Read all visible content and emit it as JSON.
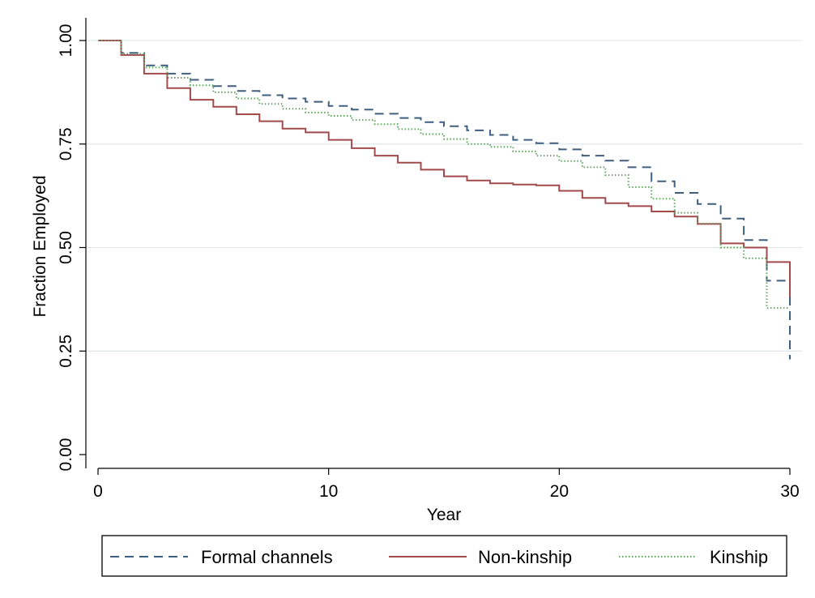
{
  "chart_data": {
    "type": "line",
    "title": "",
    "xlabel": "Year",
    "ylabel": "Fraction Employed",
    "xlim": [
      0,
      30
    ],
    "ylim": [
      0,
      1
    ],
    "x_ticks": [
      0,
      10,
      20,
      30
    ],
    "y_ticks": [
      0,
      0.25,
      0.5,
      0.75,
      1
    ],
    "x_tick_labels": [
      "0",
      "10",
      "20",
      "30"
    ],
    "y_tick_labels": [
      "0.00",
      "0.25",
      "0.50",
      "0.75",
      "1.00"
    ],
    "grid": true,
    "legend_position": "bottom",
    "step": true,
    "series": [
      {
        "name": "Formal channels",
        "color": "#3f5f7f",
        "style": "dashed",
        "x": [
          0,
          1,
          2,
          3,
          4,
          5,
          6,
          7,
          8,
          9,
          10,
          11,
          12,
          13,
          14,
          15,
          16,
          17,
          18,
          19,
          20,
          21,
          22,
          23,
          24,
          25,
          26,
          27,
          28,
          29,
          30
        ],
        "y": [
          1.0,
          0.97,
          0.94,
          0.92,
          0.905,
          0.89,
          0.878,
          0.868,
          0.86,
          0.852,
          0.842,
          0.833,
          0.823,
          0.813,
          0.803,
          0.793,
          0.783,
          0.772,
          0.76,
          0.752,
          0.737,
          0.722,
          0.71,
          0.694,
          0.66,
          0.632,
          0.605,
          0.57,
          0.518,
          0.42,
          0.23
        ]
      },
      {
        "name": "Non-kinship",
        "color": "#a14a4c",
        "style": "solid",
        "x": [
          0,
          1,
          2,
          3,
          4,
          5,
          6,
          7,
          8,
          9,
          10,
          11,
          12,
          13,
          14,
          15,
          16,
          17,
          18,
          19,
          20,
          21,
          22,
          23,
          24,
          25,
          26,
          27,
          28,
          29,
          30
        ],
        "y": [
          1.0,
          0.965,
          0.92,
          0.885,
          0.857,
          0.84,
          0.822,
          0.805,
          0.787,
          0.778,
          0.76,
          0.74,
          0.722,
          0.705,
          0.688,
          0.672,
          0.662,
          0.655,
          0.652,
          0.65,
          0.637,
          0.62,
          0.607,
          0.6,
          0.587,
          0.575,
          0.557,
          0.51,
          0.5,
          0.465,
          0.38
        ]
      },
      {
        "name": "Kinship",
        "color": "#5fa45f",
        "style": "dotted",
        "x": [
          0,
          1,
          2,
          3,
          4,
          5,
          6,
          7,
          8,
          9,
          10,
          11,
          12,
          13,
          14,
          15,
          16,
          17,
          18,
          19,
          20,
          21,
          22,
          23,
          24,
          25,
          26,
          27,
          28,
          29,
          30
        ],
        "y": [
          1.0,
          0.968,
          0.935,
          0.91,
          0.892,
          0.875,
          0.86,
          0.847,
          0.835,
          0.826,
          0.818,
          0.808,
          0.798,
          0.786,
          0.774,
          0.762,
          0.75,
          0.743,
          0.732,
          0.722,
          0.709,
          0.694,
          0.675,
          0.646,
          0.618,
          0.584,
          0.558,
          0.5,
          0.474,
          0.354,
          0.354
        ]
      }
    ]
  }
}
